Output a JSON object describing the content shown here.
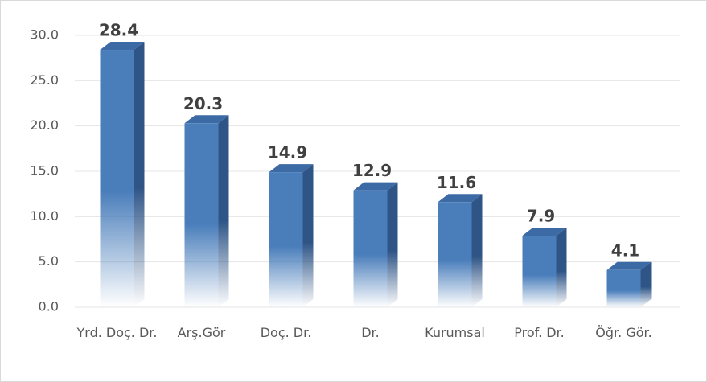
{
  "chart_data": {
    "type": "bar3d",
    "categories": [
      "Yrd. Doç. Dr.",
      "Arş.Gör",
      "Doç. Dr.",
      "Dr.",
      "Kurumsal",
      "Prof. Dr.",
      "Öğr. Gör."
    ],
    "values": [
      28.4,
      20.3,
      14.9,
      12.9,
      11.6,
      7.9,
      4.1
    ],
    "color": "#4a7ebb",
    "ylim": [
      0,
      30
    ],
    "yticks": [
      {
        "value": 0,
        "label": "0.0"
      },
      {
        "value": 5,
        "label": "5.0"
      },
      {
        "value": 10,
        "label": "10.0"
      },
      {
        "value": 15,
        "label": "15.0"
      },
      {
        "value": 20,
        "label": "20.0"
      },
      {
        "value": 25,
        "label": "25.0"
      },
      {
        "value": 30,
        "label": "30.0"
      }
    ],
    "grid": true
  }
}
